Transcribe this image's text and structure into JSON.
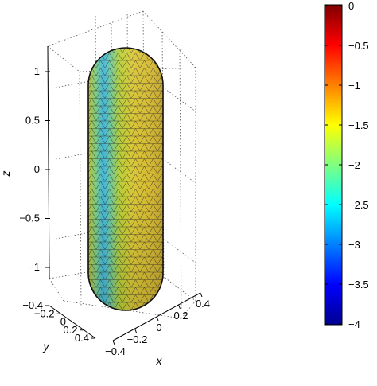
{
  "chart_data": {
    "type": "surface",
    "shape": "capsule",
    "surface": "triangulated mesh",
    "x_axis": {
      "label": "x",
      "range": [
        -0.5,
        0.5
      ],
      "ticks": [
        -0.4,
        -0.2,
        0,
        0.2,
        0.4
      ],
      "tick_labels": [
        "−0.4",
        "−0.2",
        "0",
        "0.2",
        "0.4"
      ]
    },
    "y_axis": {
      "label": "y",
      "range": [
        -0.5,
        0.5
      ],
      "ticks": [
        -0.4,
        -0.2,
        0,
        0.2,
        0.4
      ],
      "tick_labels": [
        "−0.4",
        "−0.2",
        "0",
        "0.2",
        "0.4"
      ]
    },
    "z_axis": {
      "label": "z",
      "range": [
        -1.5,
        1.5
      ],
      "ticks": [
        1,
        0.5,
        0,
        -0.5,
        -1
      ],
      "tick_labels": [
        "1",
        "0.5",
        "0",
        "−0.5",
        "−1"
      ]
    },
    "grid": "on",
    "colorbar": {
      "range": [
        -4,
        0
      ],
      "ticks": [
        0,
        -0.5,
        -1,
        -1.5,
        -2,
        -2.5,
        -3,
        -3.5,
        -4
      ],
      "tick_labels": [
        "0",
        "−0.5",
        "−1",
        "−1.5",
        "−2",
        "−2.5",
        "−3",
        "−3.5",
        "−4"
      ],
      "colormap": "jet",
      "location": "right"
    }
  }
}
